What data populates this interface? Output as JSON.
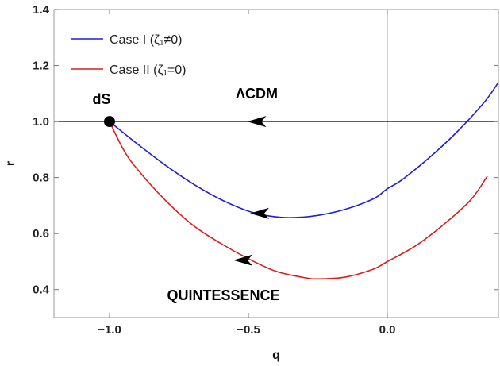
{
  "chart_data": {
    "type": "line",
    "xlabel": "q",
    "ylabel": "r",
    "xlim": [
      -1.2,
      0.4
    ],
    "ylim": [
      0.3,
      1.4
    ],
    "x_ticks": [
      -1.0,
      -0.5,
      0.0
    ],
    "x_tick_labels": [
      "−1.0",
      "−0.5",
      "0.0"
    ],
    "y_ticks": [
      0.4,
      0.6,
      0.8,
      1.0,
      1.2,
      1.4
    ],
    "y_tick_labels": [
      "0.4",
      "0.6",
      "0.8",
      "1.0",
      "1.2",
      "1.4"
    ],
    "grid": false,
    "legend_position": "top-left",
    "series": [
      {
        "name": "Case I (ζ₁≠0)",
        "color": "#1f1fd6",
        "points": [
          [
            -1.0,
            1.0
          ],
          [
            -0.9,
            0.92
          ],
          [
            -0.8,
            0.845
          ],
          [
            -0.7,
            0.778
          ],
          [
            -0.6,
            0.722
          ],
          [
            -0.5,
            0.68
          ],
          [
            -0.42,
            0.662
          ],
          [
            -0.34,
            0.657
          ],
          [
            -0.25,
            0.665
          ],
          [
            -0.15,
            0.687
          ],
          [
            -0.05,
            0.724
          ],
          [
            0.0,
            0.76
          ],
          [
            0.05,
            0.79
          ],
          [
            0.15,
            0.87
          ],
          [
            0.25,
            0.962
          ],
          [
            0.35,
            1.07
          ],
          [
            0.4,
            1.14
          ]
        ]
      },
      {
        "name": "Case II (ζ₁=0)",
        "color": "#e01b1b",
        "points": [
          [
            -1.0,
            1.0
          ],
          [
            -0.95,
            0.9
          ],
          [
            -0.9,
            0.83
          ],
          [
            -0.8,
            0.72
          ],
          [
            -0.7,
            0.63
          ],
          [
            -0.6,
            0.565
          ],
          [
            -0.5,
            0.51
          ],
          [
            -0.4,
            0.465
          ],
          [
            -0.3,
            0.443
          ],
          [
            -0.25,
            0.438
          ],
          [
            -0.15,
            0.445
          ],
          [
            -0.05,
            0.473
          ],
          [
            0.0,
            0.5
          ],
          [
            0.1,
            0.555
          ],
          [
            0.2,
            0.63
          ],
          [
            0.3,
            0.72
          ],
          [
            0.36,
            0.805
          ]
        ]
      }
    ],
    "reference_line": {
      "name": "ΛCDM",
      "y": 1.0,
      "color": "#000000"
    },
    "vertical_line": {
      "x": 0.0,
      "color": "#888888"
    },
    "fixed_point": {
      "label": "dS",
      "x": -1.0,
      "y": 1.0
    },
    "arrows": [
      {
        "x": -0.47,
        "y": 1.0,
        "color": "#000000"
      },
      {
        "x": -0.46,
        "y": 0.672,
        "color": "#000000"
      },
      {
        "x": -0.52,
        "y": 0.505,
        "color": "#000000"
      }
    ],
    "annotations": [
      {
        "text": "ΛCDM",
        "x": -0.47,
        "y": 1.1
      },
      {
        "text": "QUINTESSENCE",
        "x": -0.59,
        "y": 0.38
      }
    ]
  }
}
